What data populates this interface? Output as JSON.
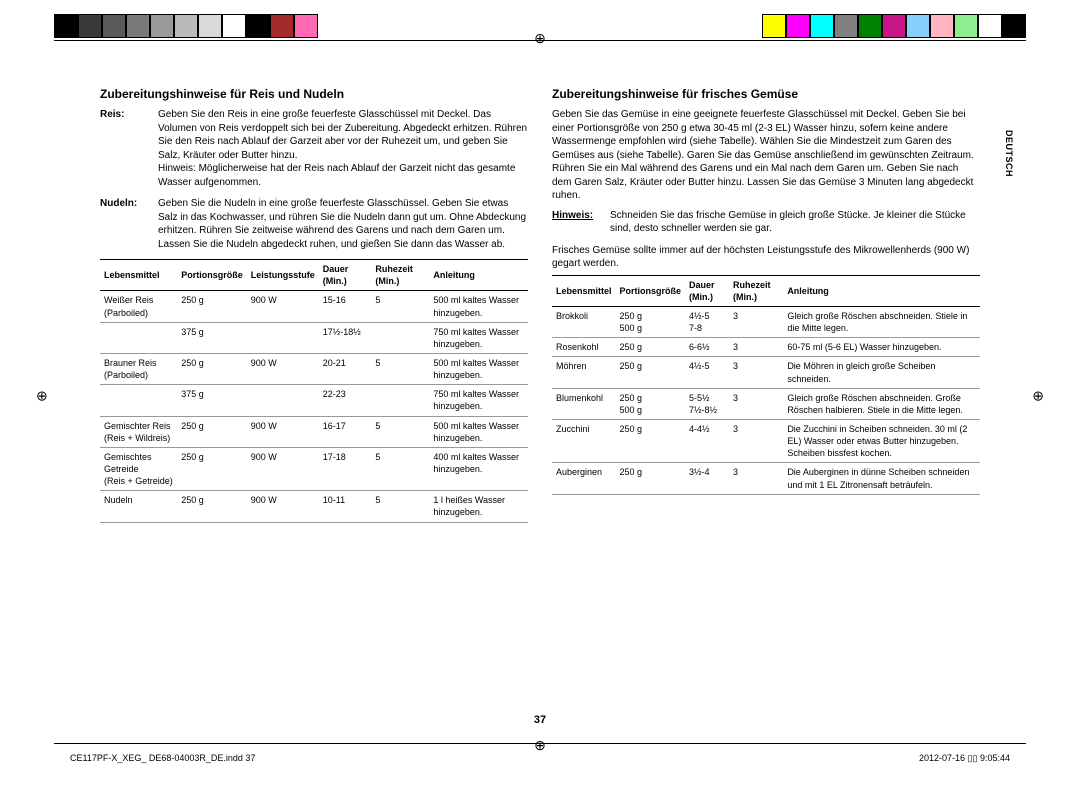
{
  "colorbars": {
    "left": [
      "#000000",
      "#3a3a3a",
      "#5a5a5a",
      "#7a7a7a",
      "#9a9a9a",
      "#bababa",
      "#dadada",
      "#ffffff",
      "#000000",
      "#a52a2a",
      "#ff69b4"
    ],
    "right": [
      "#ffff00",
      "#ff00ff",
      "#00ffff",
      "#808080",
      "#008000",
      "#c71585",
      "#87cefa",
      "#ffb6c1",
      "#90ee90",
      "#ffffff",
      "#000000"
    ]
  },
  "sideTab": "DEUTSCH",
  "pageNumber": "37",
  "footer": {
    "left": "CE117PF-X_XEG_ DE68-04003R_DE.indd   37",
    "right": "2012-07-16   ▯▯ 9:05:44"
  },
  "left": {
    "heading": "Zubereitungshinweise für Reis und Nudeln",
    "sections": [
      {
        "label": "Reis:",
        "text": "Geben Sie den Reis in eine große feuerfeste Glasschüssel mit Deckel. Das Volumen von Reis verdoppelt sich bei der Zubereitung. Abgedeckt erhitzen. Rühren Sie den Reis nach Ablauf der Garzeit aber vor der Ruhezeit um, und geben Sie Salz, Kräuter oder Butter hinzu.\nHinweis: Möglicherweise hat der Reis nach Ablauf der Garzeit nicht das gesamte Wasser aufgenommen."
      },
      {
        "label": "Nudeln:",
        "text": "Geben Sie die Nudeln in eine große feuerfeste Glasschüssel. Geben Sie etwas Salz in das Kochwasser, und rühren Sie die Nudeln dann gut um. Ohne Abdeckung erhitzen. Rühren Sie zeitweise während des Garens und nach dem Garen um. Lassen Sie die Nudeln abgedeckt ruhen, und gießen Sie dann das Wasser ab."
      }
    ],
    "table": {
      "headers": [
        "Lebensmittel",
        "Portionsgröße",
        "Leistungsstufe",
        "Dauer (Min.)",
        "Ruhezeit (Min.)",
        "Anleitung"
      ],
      "rows": [
        [
          "Weißer Reis\n(Parboiled)",
          "250 g",
          "900 W",
          "15-16",
          "5",
          "500 ml kaltes Wasser hinzugeben."
        ],
        [
          "",
          "375 g",
          "",
          "17½-18½",
          "",
          "750 ml kaltes Wasser hinzugeben."
        ],
        [
          "Brauner Reis\n(Parboiled)",
          "250 g",
          "900 W",
          "20-21",
          "5",
          "500 ml kaltes Wasser hinzugeben."
        ],
        [
          "",
          "375 g",
          "",
          "22-23",
          "",
          "750 ml kaltes Wasser hinzugeben."
        ],
        [
          "Gemischter Reis\n(Reis + Wildreis)",
          "250 g",
          "900 W",
          "16-17",
          "5",
          "500 ml kaltes Wasser hinzugeben."
        ],
        [
          "Gemischtes Getreide\n(Reis + Getreide)",
          "250 g",
          "900 W",
          "17-18",
          "5",
          "400 ml kaltes Wasser hinzugeben."
        ],
        [
          "Nudeln",
          "250 g",
          "900 W",
          "10-11",
          "5",
          "1 l heißes Wasser hinzugeben."
        ]
      ]
    }
  },
  "right": {
    "heading": "Zubereitungshinweise für frisches Gemüse",
    "intro": "Geben Sie das Gemüse in eine geeignete feuerfeste Glasschüssel mit Deckel. Geben Sie bei einer Portionsgröße von 250 g etwa 30-45 ml (2-3 EL) Wasser hinzu, sofern keine andere Wassermenge empfohlen wird (siehe Tabelle). Wählen Sie die Mindestzeit zum Garen des Gemüses aus (siehe Tabelle). Garen Sie das Gemüse anschließend im gewünschten Zeitraum. Rühren Sie ein Mal während des Garens und ein Mal nach dem Garen um. Geben Sie nach dem Garen Salz, Kräuter oder Butter hinzu. Lassen Sie das Gemüse 3 Minuten lang abgedeckt ruhen.",
    "hinweis": {
      "label": "Hinweis:",
      "text": "Schneiden Sie das frische Gemüse in gleich große Stücke. Je kleiner die Stücke sind, desto schneller werden sie gar."
    },
    "note": "Frisches Gemüse sollte immer auf der höchsten Leistungsstufe des Mikrowellenherds (900 W) gegart werden.",
    "table": {
      "headers": [
        "Lebensmittel",
        "Portionsgröße",
        "Dauer (Min.)",
        "Ruhezeit (Min.)",
        "Anleitung"
      ],
      "rows": [
        [
          "Brokkoli",
          "250 g\n500 g",
          "4½-5\n7-8",
          "3",
          "Gleich große Röschen abschneiden. Stiele in die Mitte legen."
        ],
        [
          "Rosenkohl",
          "250 g",
          "6-6½",
          "3",
          "60-75 ml (5-6 EL) Wasser hinzugeben."
        ],
        [
          "Möhren",
          "250 g",
          "4½-5",
          "3",
          "Die Möhren in gleich große Scheiben schneiden."
        ],
        [
          "Blumenkohl",
          "250 g\n500 g",
          "5-5½\n7½-8½",
          "3",
          "Gleich große Röschen abschneiden. Große Röschen halbieren. Stiele in die Mitte legen."
        ],
        [
          "Zucchini",
          "250 g",
          "4-4½",
          "3",
          "Die Zucchini in Scheiben schneiden. 30 ml (2 EL) Wasser oder etwas Butter hinzugeben. Scheiben bissfest kochen."
        ],
        [
          "Auberginen",
          "250 g",
          "3½-4",
          "3",
          "Die Auberginen in dünne Scheiben schneiden und mit 1 EL Zitronensaft beträufeln."
        ]
      ]
    }
  }
}
